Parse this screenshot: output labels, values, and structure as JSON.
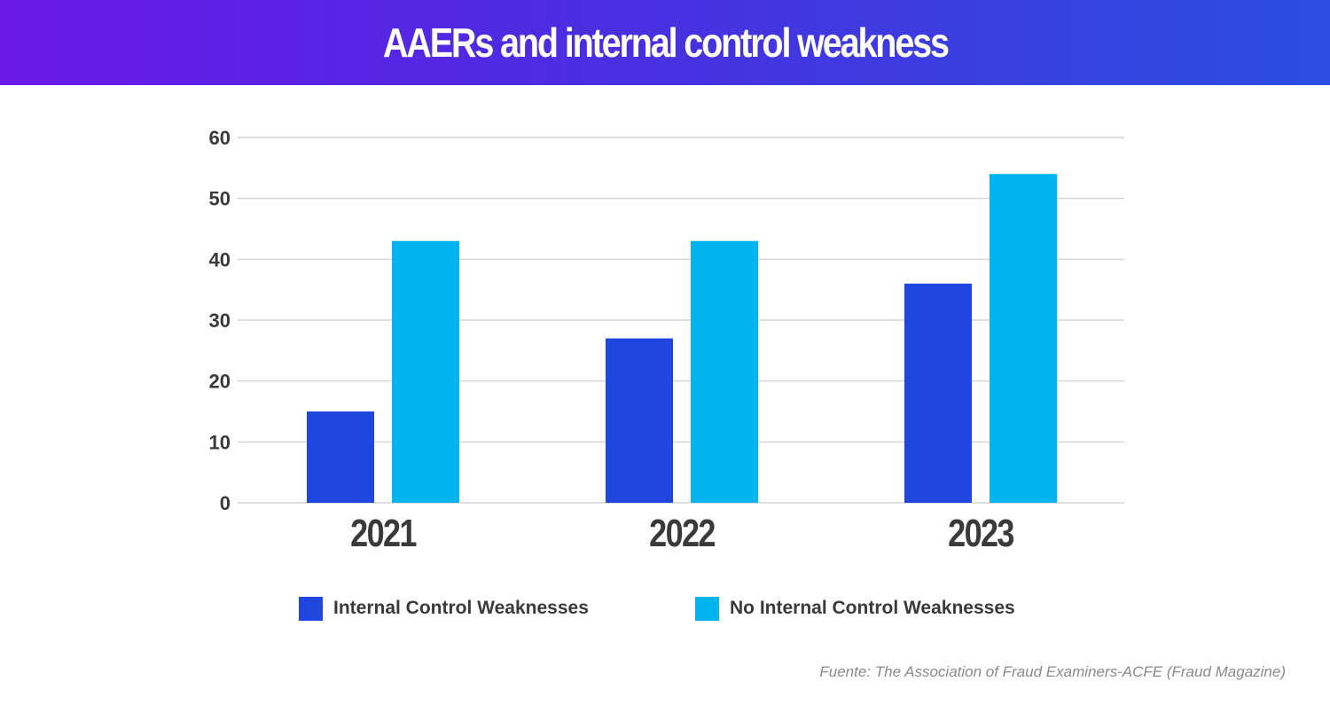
{
  "header": {
    "title": "AAERs and internal control weakness"
  },
  "colors": {
    "series1": "#1f47e0",
    "series2": "#00b4f0",
    "grid": "#cccccc",
    "text": "#3a3a3a"
  },
  "chart_data": {
    "type": "bar",
    "title": "AAERs and internal control weakness",
    "categories": [
      "2021",
      "2022",
      "2023"
    ],
    "series": [
      {
        "name": "Internal Control Weaknesses",
        "values": [
          15,
          27,
          36
        ]
      },
      {
        "name": "No Internal Control Weaknesses",
        "values": [
          43,
          43,
          54
        ]
      }
    ],
    "yticks": [
      0,
      10,
      20,
      30,
      40,
      50,
      60
    ],
    "ylim": [
      0,
      60
    ],
    "xlabel": "",
    "ylabel": "",
    "grid": true,
    "legend": "bottom"
  },
  "source": "Fuente: The Association of Fraud Examiners-ACFE (Fraud Magazine)"
}
